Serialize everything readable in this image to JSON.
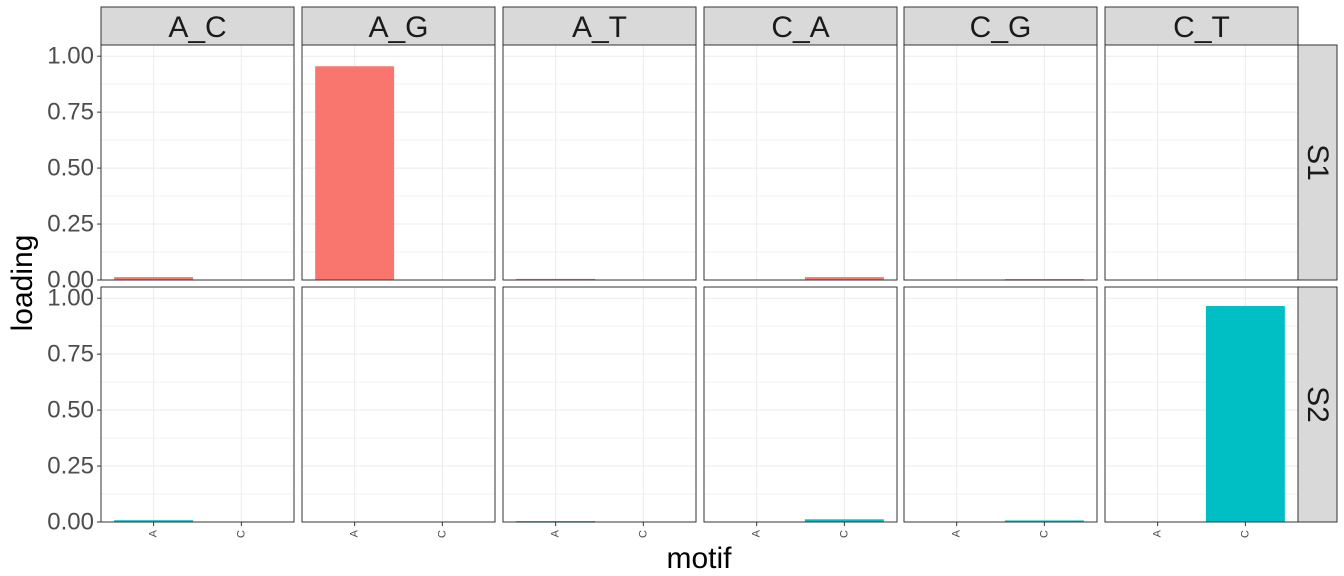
{
  "chart_data": {
    "type": "bar",
    "facet_columns": [
      "A_C",
      "A_G",
      "A_T",
      "C_A",
      "C_G",
      "C_T"
    ],
    "facet_rows": [
      "S1",
      "S2"
    ],
    "categories": [
      "A",
      "C"
    ],
    "xlabel": "motif",
    "ylabel": "loading",
    "ylim": [
      0,
      1.05
    ],
    "y_ticks": [
      "0.00",
      "0.25",
      "0.50",
      "0.75",
      "1.00"
    ],
    "grid": true,
    "legend": "none",
    "series": [
      {
        "row": "S1",
        "color": "#F8766D",
        "panels": [
          {
            "facet": "A_C",
            "values": [
              0.013,
              0
            ]
          },
          {
            "facet": "A_G",
            "values": [
              0.955,
              0
            ]
          },
          {
            "facet": "A_T",
            "values": [
              0.005,
              0
            ]
          },
          {
            "facet": "C_A",
            "values": [
              0,
              0.013
            ]
          },
          {
            "facet": "C_G",
            "values": [
              0,
              0.004
            ]
          },
          {
            "facet": "C_T",
            "values": [
              0,
              0
            ]
          }
        ]
      },
      {
        "row": "S2",
        "color": "#00BFC4",
        "panels": [
          {
            "facet": "A_C",
            "values": [
              0.008,
              0
            ]
          },
          {
            "facet": "A_G",
            "values": [
              0,
              0
            ]
          },
          {
            "facet": "A_T",
            "values": [
              0.004,
              0
            ]
          },
          {
            "facet": "C_A",
            "values": [
              0,
              0.012
            ]
          },
          {
            "facet": "C_G",
            "values": [
              0,
              0.007
            ]
          },
          {
            "facet": "C_T",
            "values": [
              0,
              0.965
            ]
          }
        ]
      }
    ]
  }
}
